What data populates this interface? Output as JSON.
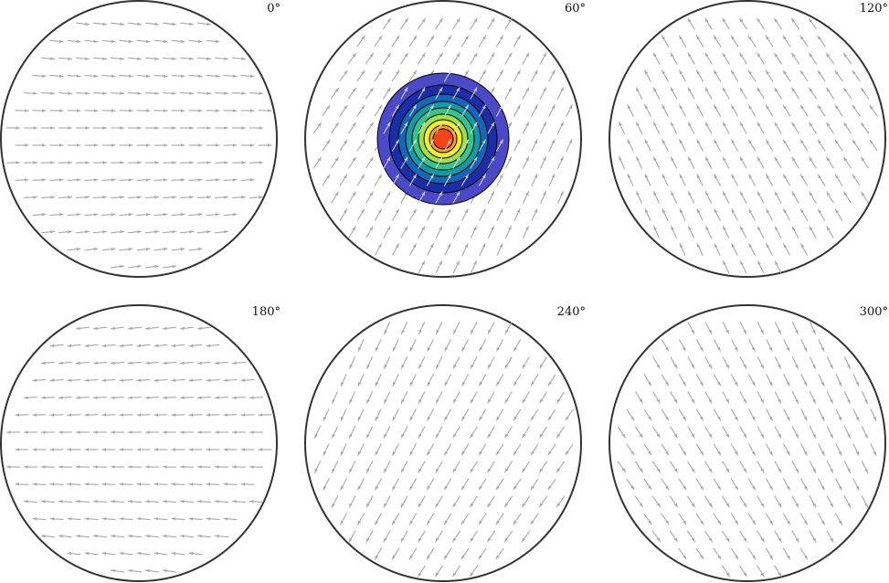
{
  "panels": [
    {
      "id": "p0",
      "label": "0°",
      "direction_deg": 0,
      "has_contours": false
    },
    {
      "id": "p60",
      "label": "60°",
      "direction_deg": 60,
      "has_contours": true
    },
    {
      "id": "p120",
      "label": "120°",
      "direction_deg": 120,
      "has_contours": false
    },
    {
      "id": "p180",
      "label": "180°",
      "direction_deg": 180,
      "has_contours": false
    },
    {
      "id": "p240",
      "label": "240°",
      "direction_deg": 240,
      "has_contours": false
    },
    {
      "id": "p300",
      "label": "300°",
      "direction_deg": 300,
      "has_contours": false
    }
  ],
  "colors": {
    "background": "#ffffff",
    "disk_outline": "#333333",
    "arrows": "#a8a8a8",
    "arrows_on_contours": "#d8d8d8",
    "contour_edges": "#000000",
    "contour_fills": [
      "#4a4ac8",
      "#1c2da8",
      "#1565b8",
      "#139aa8",
      "#35c48a",
      "#9fe04a",
      "#f2ee2a",
      "#f7a21c",
      "#f2461a"
    ]
  }
}
